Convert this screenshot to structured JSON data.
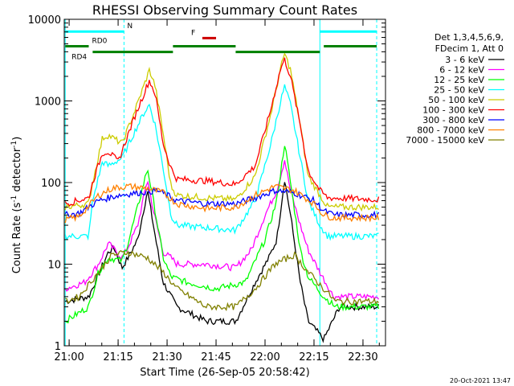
{
  "chart_data": {
    "type": "line",
    "title": "RHESSI Observing Summary Count Rates",
    "xlabel": "Start Time (26-Sep-05 20:58:42)",
    "ylabel_main": "Count Rate (s",
    "ylabel_sup1": "-1",
    "ylabel_mid": " detector",
    "ylabel_sup2": "-1",
    "ylabel_end": ")",
    "footer_date": "20-Oct-2021 13:47",
    "x_range_minutes": [
      20.0,
      36.0
    ],
    "x_range_label_times": [
      "20:58:42",
      "22:37:00"
    ],
    "y_log": true,
    "ylim": [
      1,
      10000
    ],
    "x_ticks": [
      {
        "t": 21.0,
        "label": "21:00"
      },
      {
        "t": 21.25,
        "label": "21:15"
      },
      {
        "t": 21.5,
        "label": "21:30"
      },
      {
        "t": 21.75,
        "label": "21:45"
      },
      {
        "t": 22.0,
        "label": "22:00"
      },
      {
        "t": 22.25,
        "label": "22:15"
      },
      {
        "t": 22.5,
        "label": "22:30"
      }
    ],
    "y_ticks": [
      {
        "v": 1,
        "label": "1"
      },
      {
        "v": 10,
        "label": "10"
      },
      {
        "v": 100,
        "label": "100"
      },
      {
        "v": 1000,
        "label": "1000"
      },
      {
        "v": 10000,
        "label": "10000"
      }
    ],
    "legend_header": [
      "Det 1,3,4,5,6,9,",
      "FDecim 1, Att 0"
    ],
    "series": [
      {
        "name": "3 - 6 keV",
        "color": "#000000",
        "points": [
          [
            20.98,
            3.5
          ],
          [
            21.1,
            4
          ],
          [
            21.2,
            14
          ],
          [
            21.23,
            16
          ],
          [
            21.27,
            9
          ],
          [
            21.3,
            12
          ],
          [
            21.35,
            20
          ],
          [
            21.4,
            80
          ],
          [
            21.43,
            30
          ],
          [
            21.48,
            6
          ],
          [
            21.55,
            3
          ],
          [
            21.7,
            2
          ],
          [
            21.85,
            2
          ],
          [
            21.95,
            6
          ],
          [
            22.02,
            12
          ],
          [
            22.06,
            20
          ],
          [
            22.1,
            110
          ],
          [
            22.13,
            40
          ],
          [
            22.18,
            6
          ],
          [
            22.22,
            2
          ],
          [
            22.3,
            1.2
          ],
          [
            22.38,
            3
          ],
          [
            22.58,
            3
          ]
        ]
      },
      {
        "name": "6 - 12 keV",
        "color": "#ff00ff",
        "points": [
          [
            20.98,
            5
          ],
          [
            21.08,
            6
          ],
          [
            21.15,
            10
          ],
          [
            21.2,
            18
          ],
          [
            21.27,
            12
          ],
          [
            21.3,
            16
          ],
          [
            21.35,
            30
          ],
          [
            21.4,
            110
          ],
          [
            21.43,
            45
          ],
          [
            21.48,
            14
          ],
          [
            21.52,
            12
          ],
          [
            21.55,
            10
          ],
          [
            21.7,
            10
          ],
          [
            21.85,
            9
          ],
          [
            21.93,
            15
          ],
          [
            22.0,
            40
          ],
          [
            22.06,
            80
          ],
          [
            22.1,
            190
          ],
          [
            22.13,
            80
          ],
          [
            22.18,
            30
          ],
          [
            22.22,
            15
          ],
          [
            22.28,
            8
          ],
          [
            22.35,
            4
          ],
          [
            22.58,
            4
          ]
        ]
      },
      {
        "name": "12 - 25 keV",
        "color": "#00ff00",
        "points": [
          [
            20.98,
            2
          ],
          [
            21.1,
            3
          ],
          [
            21.15,
            8
          ],
          [
            21.2,
            12
          ],
          [
            21.27,
            11
          ],
          [
            21.3,
            18
          ],
          [
            21.35,
            50
          ],
          [
            21.4,
            150
          ],
          [
            21.43,
            60
          ],
          [
            21.48,
            12
          ],
          [
            21.52,
            7
          ],
          [
            21.6,
            6
          ],
          [
            21.75,
            5
          ],
          [
            21.9,
            6
          ],
          [
            22.0,
            20
          ],
          [
            22.06,
            60
          ],
          [
            22.1,
            300
          ],
          [
            22.13,
            100
          ],
          [
            22.18,
            15
          ],
          [
            22.22,
            7
          ],
          [
            22.3,
            4
          ],
          [
            22.36,
            3
          ],
          [
            22.58,
            3
          ]
        ]
      },
      {
        "name": "25 - 50 keV",
        "color": "#00ffff",
        "points": [
          [
            20.98,
            22
          ],
          [
            21.1,
            22
          ],
          [
            21.12,
            60
          ],
          [
            21.17,
            180
          ],
          [
            21.2,
            160
          ],
          [
            21.27,
            200
          ],
          [
            21.33,
            400
          ],
          [
            21.38,
            700
          ],
          [
            21.41,
            900
          ],
          [
            21.44,
            500
          ],
          [
            21.48,
            150
          ],
          [
            21.52,
            40
          ],
          [
            21.55,
            30
          ],
          [
            21.7,
            28
          ],
          [
            21.85,
            26
          ],
          [
            21.95,
            60
          ],
          [
            22.03,
            300
          ],
          [
            22.08,
            1000
          ],
          [
            22.1,
            1500
          ],
          [
            22.13,
            900
          ],
          [
            22.18,
            200
          ],
          [
            22.22,
            60
          ],
          [
            22.28,
            30
          ],
          [
            22.32,
            22
          ],
          [
            22.58,
            22
          ]
        ]
      },
      {
        "name": "50 - 100 keV",
        "color": "#cccc00",
        "points": [
          [
            20.98,
            50
          ],
          [
            21.1,
            55
          ],
          [
            21.12,
            100
          ],
          [
            21.17,
            350
          ],
          [
            21.2,
            380
          ],
          [
            21.27,
            300
          ],
          [
            21.33,
            700
          ],
          [
            21.38,
            1500
          ],
          [
            21.41,
            2400
          ],
          [
            21.44,
            1500
          ],
          [
            21.48,
            400
          ],
          [
            21.52,
            90
          ],
          [
            21.55,
            70
          ],
          [
            21.7,
            65
          ],
          [
            21.85,
            62
          ],
          [
            21.95,
            120
          ],
          [
            22.03,
            700
          ],
          [
            22.08,
            2500
          ],
          [
            22.1,
            3800
          ],
          [
            22.13,
            2400
          ],
          [
            22.18,
            500
          ],
          [
            22.22,
            120
          ],
          [
            22.28,
            70
          ],
          [
            22.32,
            50
          ],
          [
            22.58,
            50
          ]
        ]
      },
      {
        "name": "100 - 300 keV",
        "color": "#ff0000",
        "points": [
          [
            20.98,
            55
          ],
          [
            21.1,
            65
          ],
          [
            21.12,
            100
          ],
          [
            21.17,
            230
          ],
          [
            21.2,
            240
          ],
          [
            21.25,
            180
          ],
          [
            21.33,
            600
          ],
          [
            21.38,
            1200
          ],
          [
            21.41,
            1800
          ],
          [
            21.44,
            1200
          ],
          [
            21.48,
            300
          ],
          [
            21.52,
            150
          ],
          [
            21.55,
            110
          ],
          [
            21.7,
            105
          ],
          [
            21.85,
            95
          ],
          [
            21.95,
            160
          ],
          [
            22.03,
            800
          ],
          [
            22.08,
            2500
          ],
          [
            22.1,
            3200
          ],
          [
            22.13,
            2000
          ],
          [
            22.18,
            500
          ],
          [
            22.22,
            140
          ],
          [
            22.28,
            80
          ],
          [
            22.32,
            65
          ],
          [
            22.58,
            62
          ]
        ]
      },
      {
        "name": "300 - 800 keV",
        "color": "#0000ff",
        "points": [
          [
            20.98,
            40
          ],
          [
            21.05,
            42
          ],
          [
            21.15,
            60
          ],
          [
            21.25,
            70
          ],
          [
            21.35,
            75
          ],
          [
            21.45,
            80
          ],
          [
            21.5,
            70
          ],
          [
            21.55,
            60
          ],
          [
            21.7,
            55
          ],
          [
            21.85,
            55
          ],
          [
            21.95,
            65
          ],
          [
            22.05,
            80
          ],
          [
            22.15,
            75
          ],
          [
            22.25,
            60
          ],
          [
            22.3,
            45
          ],
          [
            22.35,
            40
          ],
          [
            22.58,
            40
          ]
        ]
      },
      {
        "name": "800 - 7000 keV",
        "color": "#ff8000",
        "points": [
          [
            20.98,
            35
          ],
          [
            21.05,
            38
          ],
          [
            21.15,
            70
          ],
          [
            21.22,
            85
          ],
          [
            21.3,
            90
          ],
          [
            21.4,
            85
          ],
          [
            21.48,
            75
          ],
          [
            21.55,
            55
          ],
          [
            21.7,
            48
          ],
          [
            21.85,
            50
          ],
          [
            21.95,
            70
          ],
          [
            22.05,
            90
          ],
          [
            22.15,
            80
          ],
          [
            22.25,
            55
          ],
          [
            22.3,
            40
          ],
          [
            22.35,
            37
          ],
          [
            22.58,
            37
          ]
        ]
      },
      {
        "name": "7000 - 15000 keV",
        "color": "#808000",
        "points": [
          [
            20.98,
            3.5
          ],
          [
            21.05,
            4
          ],
          [
            21.15,
            8
          ],
          [
            21.22,
            13
          ],
          [
            21.3,
            14
          ],
          [
            21.4,
            12
          ],
          [
            21.48,
            8
          ],
          [
            21.55,
            5
          ],
          [
            21.7,
            3
          ],
          [
            21.85,
            3
          ],
          [
            21.95,
            5
          ],
          [
            22.05,
            10
          ],
          [
            22.15,
            13
          ],
          [
            22.22,
            8
          ],
          [
            22.3,
            5
          ],
          [
            22.36,
            3.5
          ],
          [
            22.58,
            3.5
          ]
        ]
      }
    ],
    "bars": [
      {
        "label": "N",
        "color": "#00ffff",
        "segments": [
          [
            20.98,
            21.28
          ],
          [
            22.28,
            22.57
          ]
        ],
        "y_log": 3.85
      },
      {
        "label": "F",
        "color": "#cc0000",
        "segments": [
          [
            21.68,
            21.75
          ]
        ],
        "y_log": 3.77
      },
      {
        "label": "RD0",
        "color": "#008000",
        "segments": [
          [
            20.98,
            21.1
          ],
          [
            21.53,
            21.85
          ],
          [
            22.3,
            22.57
          ]
        ],
        "y_log": 3.67
      },
      {
        "label": "RD4",
        "color": "#008000",
        "segments": [
          [
            21.12,
            21.53
          ],
          [
            21.85,
            22.28
          ]
        ],
        "y_log": 3.6
      }
    ],
    "vlines": [
      {
        "t": 21.28,
        "color": "#00ffff",
        "dash": true
      },
      {
        "t": 22.28,
        "color": "#00ffff",
        "dash": false
      },
      {
        "t": 22.57,
        "color": "#00ffff",
        "dash": true
      },
      {
        "t": 20.98,
        "color": "#00ffff",
        "dash": false
      }
    ]
  }
}
